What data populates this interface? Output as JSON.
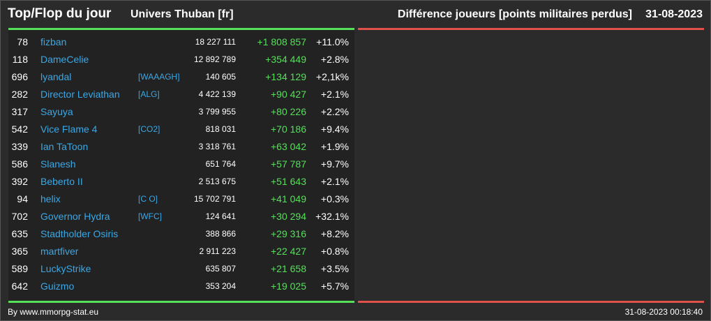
{
  "header": {
    "title": "Top/Flop du jour",
    "universe": "Univers Thuban [fr]",
    "metric": "Différence joueurs [points militaires perdus]",
    "date": "31-08-2023"
  },
  "colors": {
    "accent_green": "#55e05a",
    "accent_red": "#e0514c",
    "link_blue": "#3aa8e6"
  },
  "rows": [
    {
      "rank": "78",
      "name": "fizban",
      "alliance": "",
      "total": "18 227 111",
      "diff": "+1 808 857",
      "pct": "+11.0%"
    },
    {
      "rank": "118",
      "name": "DameCelie",
      "alliance": "",
      "total": "12 892 789",
      "diff": "+354 449",
      "pct": "+2.8%"
    },
    {
      "rank": "696",
      "name": "lyandal",
      "alliance": "[WAAAGH]",
      "total": "140 605",
      "diff": "+134 129",
      "pct": "+2,1k%"
    },
    {
      "rank": "282",
      "name": "Director Leviathan",
      "alliance": "[ALG]",
      "total": "4 422 139",
      "diff": "+90 427",
      "pct": "+2.1%"
    },
    {
      "rank": "317",
      "name": "Sayuya",
      "alliance": "",
      "total": "3 799 955",
      "diff": "+80 226",
      "pct": "+2.2%"
    },
    {
      "rank": "542",
      "name": "Vice Flame 4",
      "alliance": "[CO2]",
      "total": "818 031",
      "diff": "+70 186",
      "pct": "+9.4%"
    },
    {
      "rank": "339",
      "name": "Ian TaToon",
      "alliance": "",
      "total": "3 318 761",
      "diff": "+63 042",
      "pct": "+1.9%"
    },
    {
      "rank": "586",
      "name": "Slanesh",
      "alliance": "",
      "total": "651 764",
      "diff": "+57 787",
      "pct": "+9.7%"
    },
    {
      "rank": "392",
      "name": "Beberto II",
      "alliance": "",
      "total": "2 513 675",
      "diff": "+51 643",
      "pct": "+2.1%"
    },
    {
      "rank": "94",
      "name": "helix",
      "alliance": "[C O]",
      "total": "15 702 791",
      "diff": "+41 049",
      "pct": "+0.3%"
    },
    {
      "rank": "702",
      "name": "Governor Hydra",
      "alliance": "[WFC]",
      "total": "124 641",
      "diff": "+30 294",
      "pct": "+32.1%"
    },
    {
      "rank": "635",
      "name": "Stadtholder Osiris",
      "alliance": "",
      "total": "388 866",
      "diff": "+29 316",
      "pct": "+8.2%"
    },
    {
      "rank": "365",
      "name": "martfiver",
      "alliance": "",
      "total": "2 911 223",
      "diff": "+22 427",
      "pct": "+0.8%"
    },
    {
      "rank": "589",
      "name": "LuckyStrike",
      "alliance": "",
      "total": "635 807",
      "diff": "+21 658",
      "pct": "+3.5%"
    },
    {
      "rank": "642",
      "name": "Guizmo",
      "alliance": "",
      "total": "353 204",
      "diff": "+19 025",
      "pct": "+5.7%"
    }
  ],
  "footer": {
    "credit": "By www.mmorpg-stat.eu",
    "timestamp": "31-08-2023 00:18:40"
  }
}
